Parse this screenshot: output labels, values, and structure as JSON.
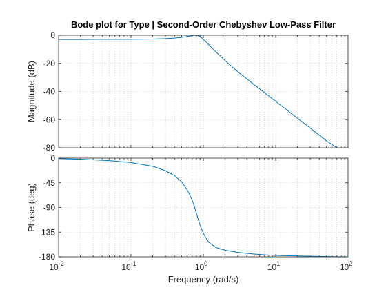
{
  "figure": {
    "title": "Bode plot for Type | Second-Order Chebyshev Low-Pass Filter",
    "xlabel": "Frequency  (rad/s)",
    "line_color": "#0072BD"
  },
  "chart_data": [
    {
      "type": "line",
      "panel": "magnitude",
      "xscale": "log",
      "xlim": [
        0.01,
        100
      ],
      "ylim": [
        -80,
        0
      ],
      "ylabel": "Magnitude (dB)",
      "yticks": [
        0,
        -20,
        -40,
        -60,
        -80
      ],
      "ytick_labels": [
        "0",
        "-20",
        "-40",
        "-60",
        "-80"
      ],
      "grid": true,
      "series": [
        {
          "x": [
            0.01,
            0.02,
            0.05,
            0.1,
            0.2,
            0.3,
            0.4,
            0.5,
            0.6,
            0.7,
            0.75,
            0.8,
            0.85,
            0.9,
            0.95,
            1.0,
            1.1,
            1.2,
            1.5,
            2,
            3,
            5,
            7,
            10,
            20,
            30,
            50,
            70
          ],
          "y": [
            -3.0,
            -3.0,
            -2.9,
            -2.9,
            -2.7,
            -2.4,
            -2.0,
            -1.5,
            -0.9,
            -0.3,
            0.0,
            -0.1,
            -0.4,
            -1.0,
            -1.8,
            -3.0,
            -5.0,
            -7.0,
            -12.0,
            -18.0,
            -26.0,
            -35.0,
            -40.8,
            -47.0,
            -59.0,
            -66.0,
            -75.0,
            -80.0
          ]
        }
      ]
    },
    {
      "type": "line",
      "panel": "phase",
      "xscale": "log",
      "xlim": [
        0.01,
        100
      ],
      "ylim": [
        -180,
        0
      ],
      "ylabel": "Phase (deg)",
      "yticks": [
        0,
        -45,
        -90,
        -135,
        -180
      ],
      "ytick_labels": [
        "0",
        "-45",
        "-90",
        "-135",
        "-180"
      ],
      "xticks": [
        0.01,
        0.1,
        1,
        10,
        100
      ],
      "xtick_labels": [
        [
          "10",
          "-2"
        ],
        [
          "10",
          "-1"
        ],
        [
          "10",
          "0"
        ],
        [
          "10",
          "1"
        ],
        [
          "10",
          "2"
        ]
      ],
      "grid": true,
      "series": [
        {
          "x": [
            0.01,
            0.02,
            0.05,
            0.1,
            0.2,
            0.3,
            0.4,
            0.5,
            0.6,
            0.7,
            0.75,
            0.8,
            0.85,
            0.9,
            0.95,
            1.0,
            1.1,
            1.2,
            1.5,
            2,
            3,
            5,
            10,
            20,
            50,
            100
          ],
          "y": [
            -1,
            -2,
            -4.5,
            -8,
            -15,
            -23,
            -32,
            -43,
            -58,
            -76,
            -88,
            -100,
            -112,
            -122,
            -130,
            -137,
            -147,
            -154,
            -163,
            -168,
            -172,
            -175,
            -177.5,
            -178.5,
            -179.5,
            -180
          ]
        }
      ]
    }
  ]
}
